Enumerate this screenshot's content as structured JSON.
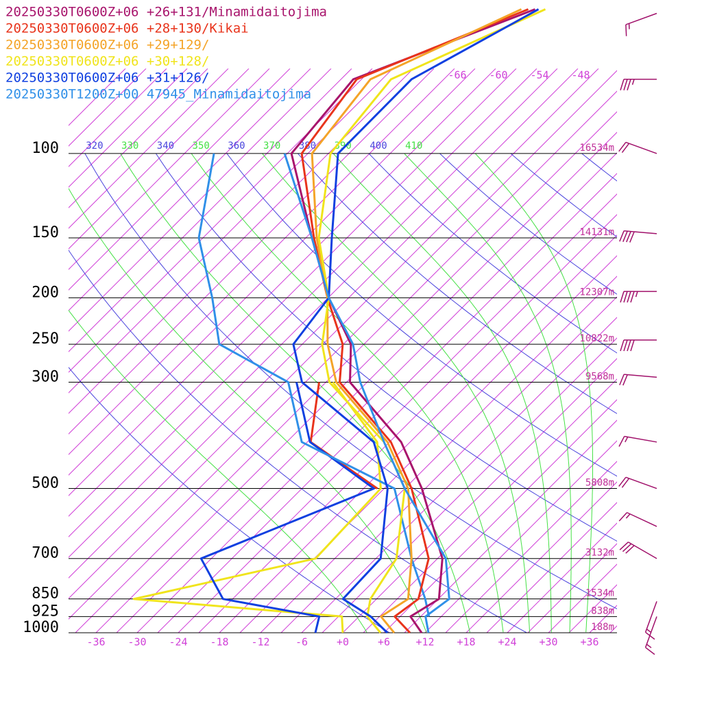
{
  "chart_data": {
    "type": "skewt",
    "series": [
      {
        "name": "20250330T0600Z+06 +26+131/Minamidaitojima",
        "color": "#a8146c",
        "values": [
          11.5,
          7.5,
          9.1,
          3.7,
          -9.5,
          -19.3,
          -35.5,
          -40.9,
          -50.9,
          -62.1,
          -77.4,
          -79.2,
          -62.9
        ],
        "dewpoint": [
          null,
          null,
          null,
          null,
          null,
          null,
          null,
          null,
          null,
          null,
          null,
          null,
          null
        ]
      },
      {
        "name": "20250330T0600Z+06 +28+130/Kikai",
        "color": "#e8341c",
        "values": [
          9.8,
          5.2,
          6.1,
          1.7,
          -11,
          -20.8,
          -37,
          -42.1,
          -51.1,
          -61.8,
          -75.9,
          -78.7,
          -63.9
        ],
        "dewpoint": [
          null,
          null,
          null,
          null,
          -16,
          -32.5,
          -40,
          null,
          null,
          null,
          null,
          null,
          null
        ]
      },
      {
        "name": "20250330T0600Z+06 +29+129/",
        "color": "#f4a428",
        "values": [
          7.5,
          3.2,
          4.6,
          -0.8,
          -11.5,
          -21.3,
          -37.5,
          -44.3,
          -51.1,
          -61.4,
          -74.4,
          -76.7,
          -64.9
        ],
        "dewpoint": [
          null,
          null,
          null,
          null,
          null,
          null,
          null,
          null,
          null,
          null,
          null,
          null,
          null
        ]
      },
      {
        "name": "20250330T0600Z+06 +30+128/",
        "color": "#f0e41c",
        "values": [
          5.5,
          1.2,
          -0.9,
          -3,
          -12,
          -21.8,
          -38.5,
          -45.1,
          -50.9,
          -61.1,
          -71.7,
          -73.7,
          -61.4
        ],
        "dewpoint": [
          0,
          -2.5,
          -35.4,
          -14.8,
          -15.5,
          -22.8,
          -38,
          null,
          null,
          null,
          null,
          null,
          null
        ]
      },
      {
        "name": "20250330T0600Z+06 +31+126/",
        "color": "#1040e0",
        "values": [
          6.5,
          1.7,
          -4.9,
          -5.3,
          -14.5,
          -23.3,
          -42.5,
          -49.3,
          -50.9,
          -59.2,
          -70.6,
          -70.7,
          -62.4
        ],
        "dewpoint": [
          -4,
          -5.8,
          -22.4,
          -31.5,
          -16.5,
          -32.6,
          -43.3,
          null,
          null,
          null,
          null,
          null,
          null
        ]
      },
      {
        "name": "20250330T1200Z+00 47945_Minamidaitojima",
        "color": "#3090e8",
        "values": [
          12.5,
          9.7,
          10.6,
          4.2,
          -12,
          -21.8,
          -34,
          -40.6,
          -50.9,
          -62.1,
          -78.4,
          null,
          null
        ],
        "dewpoint": [
          null,
          10.2,
          7.1,
          -0.8,
          -13.5,
          -33.8,
          -44.5,
          -60.1,
          -67.9,
          -78.6,
          -88.7,
          null,
          null
        ]
      }
    ],
    "pressure": [
      1000,
      925,
      850,
      700,
      500,
      400,
      300,
      250,
      200,
      150,
      100,
      70,
      50
    ],
    "levels": [
      100,
      150,
      200,
      250,
      300,
      500,
      700,
      850,
      925,
      1000
    ],
    "heights": [
      "16534m",
      "14131m",
      "12307m",
      "10822m",
      "9568m",
      "5808m",
      "3132m",
      "1534m",
      "838m",
      "188m"
    ],
    "xticks": [
      -36,
      -30,
      -24,
      -18,
      -12,
      -6,
      {
        "value": 0,
        "label": "+0"
      },
      {
        "value": 6,
        "label": "+6"
      },
      {
        "value": 12,
        "label": "+12"
      },
      {
        "value": 18,
        "label": "+18"
      },
      {
        "value": 24,
        "label": "+24"
      },
      {
        "value": 30,
        "label": "+30"
      },
      {
        "value": 36,
        "label": "+36"
      }
    ],
    "top_ticks": [
      -66,
      -60,
      -54,
      -48
    ],
    "isotherms": [
      -114,
      -111,
      -108,
      -105,
      -102,
      -99,
      -96,
      -93,
      -90,
      -87,
      -84,
      -81,
      -78,
      -75,
      -72,
      -69,
      -66,
      -63,
      -60,
      -57,
      -54,
      -51,
      -48,
      -45,
      -42,
      -39,
      -36,
      -33,
      -30,
      -27,
      -24,
      -21,
      -18,
      -15,
      -12,
      -9,
      -6,
      -3,
      0,
      3,
      6,
      9,
      12,
      15,
      18,
      21,
      24,
      27,
      30,
      33,
      36,
      39
    ],
    "dry_adiabats": [
      280,
      300,
      320,
      340,
      360,
      380,
      400,
      420,
      440,
      460
    ],
    "moist_adiabats": [
      290,
      310,
      330,
      350,
      370,
      390,
      410,
      430
    ],
    "theta_labels": [
      320,
      330,
      340,
      350,
      360,
      370,
      380,
      390,
      400,
      410
    ],
    "isotherm_color": "#d040d8",
    "dry_color": "#4a44dd",
    "moist_color": "#44e044",
    "winds": {
      "color": "#a0106a",
      "pressure": [
        51,
        70,
        100,
        147,
        194,
        245,
        293,
        400,
        500,
        600,
        700,
        860,
        925
      ],
      "speed": [
        15,
        35,
        20,
        40,
        45,
        40,
        20,
        15,
        20,
        15,
        30,
        15,
        15
      ],
      "direction": [
        250,
        270,
        290,
        275,
        270,
        270,
        275,
        280,
        290,
        295,
        300,
        200,
        200
      ]
    }
  }
}
